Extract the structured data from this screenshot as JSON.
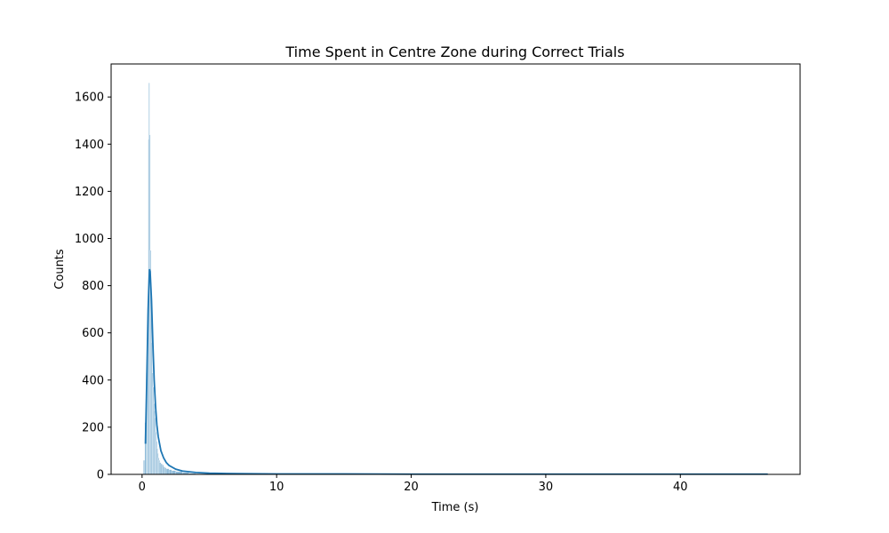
{
  "chart_data": {
    "type": "bar",
    "title": "Time Spent in Centre Zone during Correct Trials",
    "xlabel": "Time (s)",
    "ylabel": "Counts",
    "xlim": [
      -2.3,
      48.9
    ],
    "ylim": [
      0,
      1740
    ],
    "x_ticks": [
      0,
      10,
      20,
      30,
      40
    ],
    "y_ticks": [
      0,
      200,
      400,
      600,
      800,
      1000,
      1200,
      1400,
      1600
    ],
    "grid": false,
    "legend": "none",
    "bar_color": "#1f77b4",
    "kde_color": "#1f77b4",
    "histogram": {
      "x": [
        0.1,
        0.2,
        0.3,
        0.35,
        0.4,
        0.45,
        0.5,
        0.55,
        0.6,
        0.65,
        0.7,
        0.75,
        0.8,
        0.85,
        0.9,
        0.95,
        1.0,
        1.05,
        1.1,
        1.15,
        1.2,
        1.25,
        1.3,
        1.4,
        1.5,
        1.6,
        1.7,
        1.8,
        2.0,
        2.2,
        2.5,
        3.0,
        3.5,
        4.0,
        5.0,
        6.0
      ],
      "counts": [
        60,
        220,
        430,
        580,
        680,
        1420,
        1660,
        1440,
        950,
        720,
        560,
        430,
        370,
        300,
        270,
        240,
        180,
        140,
        110,
        90,
        70,
        60,
        50,
        45,
        40,
        32,
        28,
        24,
        20,
        16,
        12,
        8,
        5,
        3,
        2,
        1
      ]
    },
    "kde": {
      "x": [
        0.25,
        0.35,
        0.45,
        0.5,
        0.55,
        0.6,
        0.7,
        0.8,
        0.9,
        1.0,
        1.1,
        1.2,
        1.4,
        1.6,
        1.8,
        2.0,
        2.5,
        3.0,
        4.0,
        5.0,
        7.0,
        10.0,
        15.0,
        20.0,
        30.0,
        40.0,
        46.5
      ],
      "y": [
        130,
        400,
        700,
        790,
        870,
        860,
        740,
        560,
        400,
        290,
        210,
        160,
        100,
        70,
        50,
        38,
        22,
        14,
        8,
        5,
        3,
        2,
        2,
        1,
        1,
        1,
        1
      ]
    }
  }
}
